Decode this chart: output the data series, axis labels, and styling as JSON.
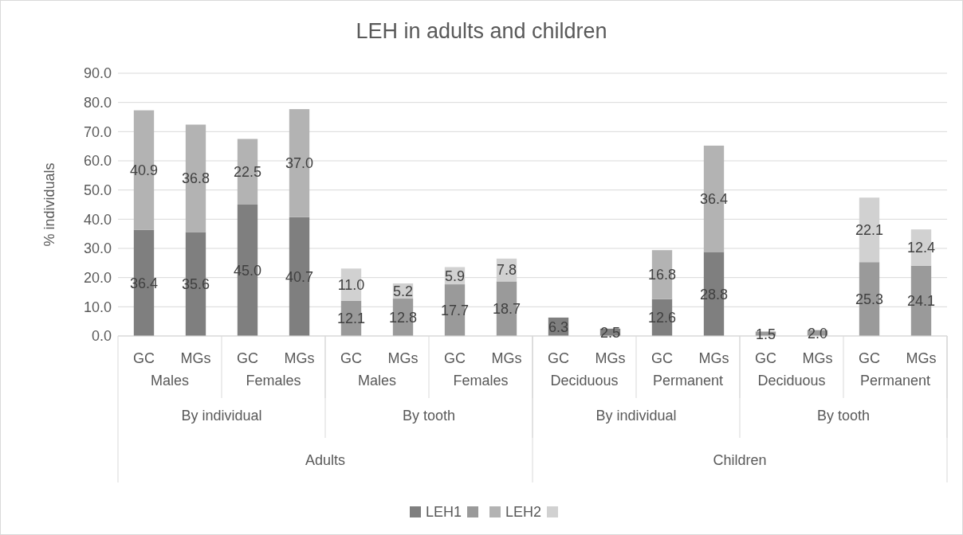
{
  "chart_data": {
    "type": "bar",
    "title": "LEH in adults and children",
    "ylabel": "% individuals",
    "stacked": true,
    "grid": "y",
    "legend": "bottom",
    "categories": [
      "GC",
      "MGs",
      "GC",
      "MGs",
      "GC",
      "MGs",
      "GC",
      "MGs",
      "GC",
      "MGs",
      "GC",
      "MGs",
      "GC",
      "MGs",
      "GC",
      "MGs"
    ],
    "annotations": [
      "Males",
      "Females",
      "Males",
      "Females",
      "Deciduous",
      "Permanent",
      "Deciduous",
      "Permanent",
      "By individual",
      "By tooth",
      "By individual",
      "By tooth",
      "Adults",
      "Children"
    ],
    "ylim": [
      0,
      90
    ],
    "yticks": [
      {
        "value": 0,
        "label": "0.0"
      },
      {
        "value": 10,
        "label": "10.0"
      },
      {
        "value": 20,
        "label": "20.0"
      },
      {
        "value": 30,
        "label": "30.0"
      },
      {
        "value": 40,
        "label": "40.0"
      },
      {
        "value": 50,
        "label": "50.0"
      },
      {
        "value": 60,
        "label": "60.0"
      },
      {
        "value": 70,
        "label": "70.0"
      },
      {
        "value": 80,
        "label": "80.0"
      },
      {
        "value": 90,
        "label": "90.0"
      }
    ],
    "series": [
      {
        "name": "LEH1",
        "color": "#7f7f7f",
        "values": [
          36.4,
          35.6,
          45.0,
          40.7,
          null,
          null,
          null,
          null,
          6.3,
          2.5,
          12.6,
          28.8,
          null,
          null,
          null,
          null
        ],
        "value_labels": [
          "36.4",
          "35.6",
          "45.0",
          "40.7",
          null,
          null,
          null,
          null,
          "6.3",
          "2.5",
          "12.6",
          "28.8",
          null,
          null,
          null,
          null
        ]
      },
      {
        "color": "#9a9a9a",
        "values": [
          null,
          null,
          null,
          null,
          12.1,
          12.8,
          17.7,
          18.7,
          null,
          null,
          null,
          null,
          1.5,
          2.0,
          25.3,
          24.1
        ],
        "value_labels": [
          null,
          null,
          null,
          null,
          "12.1",
          "12.8",
          "17.7",
          "18.7",
          null,
          null,
          null,
          null,
          "1.5",
          "2.0",
          "25.3",
          "24.1"
        ]
      },
      {
        "name": "LEH2",
        "color": "#b3b3b3",
        "values": [
          40.9,
          36.8,
          22.5,
          37.0,
          null,
          null,
          null,
          null,
          null,
          null,
          16.8,
          36.4,
          null,
          null,
          null,
          null
        ],
        "value_labels": [
          "40.9",
          "36.8",
          "22.5",
          "37.0",
          null,
          null,
          null,
          null,
          null,
          null,
          "16.8",
          "36.4",
          null,
          null,
          null,
          null
        ]
      },
      {
        "color": "#d1d1d1",
        "values": [
          null,
          null,
          null,
          null,
          11.0,
          5.2,
          5.9,
          7.8,
          null,
          null,
          null,
          null,
          null,
          null,
          22.1,
          12.4
        ],
        "value_labels": [
          null,
          null,
          null,
          null,
          "11.0",
          "5.2",
          "5.9",
          "7.8",
          null,
          null,
          null,
          null,
          null,
          null,
          "22.1",
          "12.4"
        ]
      }
    ]
  }
}
